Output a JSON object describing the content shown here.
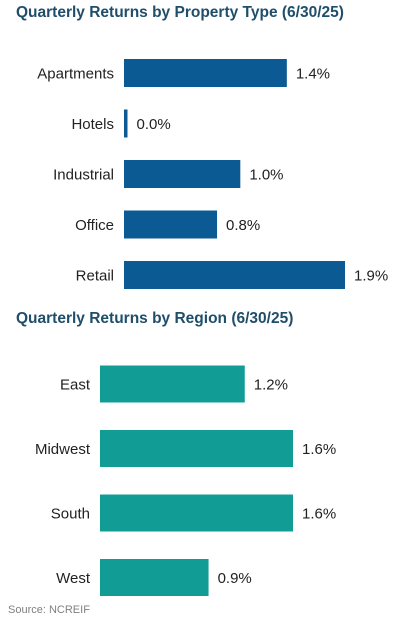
{
  "chart_data": [
    {
      "type": "bar",
      "orientation": "horizontal",
      "title": "Quarterly Returns by Property Type (6/30/25)",
      "categories": [
        "Apartments",
        "Hotels",
        "Industrial",
        "Office",
        "Retail"
      ],
      "values": [
        1.4,
        0.0,
        1.0,
        0.8,
        1.9
      ],
      "value_labels": [
        "1.4%",
        "0.0%",
        "1.0%",
        "0.8%",
        "1.9%"
      ],
      "unit": "%",
      "color": "#0b5a94",
      "xlim": [
        0,
        1.9
      ]
    },
    {
      "type": "bar",
      "orientation": "horizontal",
      "title": "Quarterly Returns by Region (6/30/25)",
      "categories": [
        "East",
        "Midwest",
        "South",
        "West"
      ],
      "values": [
        1.2,
        1.6,
        1.6,
        0.9
      ],
      "value_labels": [
        "1.2%",
        "1.6%",
        "1.6%",
        "0.9%"
      ],
      "unit": "%",
      "color": "#119c96",
      "xlim": [
        0,
        1.6
      ]
    }
  ],
  "source": "Source: NCREIF"
}
